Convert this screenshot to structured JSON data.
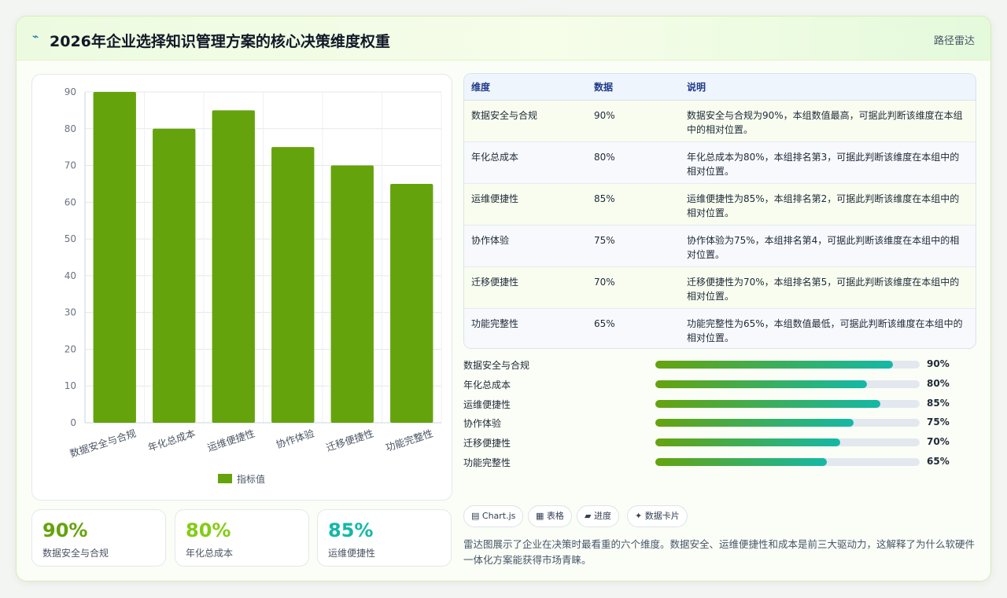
{
  "header": {
    "icon": "path-icon",
    "title": "2026年企业选择知识管理方案的核心决策维度权重",
    "tag": "路径雷达"
  },
  "chart_data": {
    "type": "bar",
    "categories": [
      "数据安全与合规",
      "年化总成本",
      "运维便捷性",
      "协作体验",
      "迁移便捷性",
      "功能完整性"
    ],
    "series": [
      {
        "name": "指标值",
        "values": [
          90,
          80,
          85,
          75,
          70,
          65
        ]
      }
    ],
    "ylim": [
      0,
      90
    ],
    "yticks": [
      0,
      10,
      20,
      30,
      40,
      50,
      60,
      70,
      80,
      90
    ],
    "grid": true,
    "legend": "bottom",
    "bar_color": "#65a30d"
  },
  "stats": [
    {
      "value": "90%",
      "label": "数据安全与合规",
      "color": "#65a30d"
    },
    {
      "value": "80%",
      "label": "年化总成本",
      "color": "#84cc16"
    },
    {
      "value": "85%",
      "label": "运维便捷性",
      "color": "#14b8a6"
    }
  ],
  "table": {
    "headers": [
      "维度",
      "数据",
      "说明"
    ],
    "rows": [
      [
        "数据安全与合规",
        "90%",
        "数据安全与合规为90%，本组数值最高，可据此判断该维度在本组中的相对位置。"
      ],
      [
        "年化总成本",
        "80%",
        "年化总成本为80%，本组排名第3，可据此判断该维度在本组中的相对位置。"
      ],
      [
        "运维便捷性",
        "85%",
        "运维便捷性为85%，本组排名第2，可据此判断该维度在本组中的相对位置。"
      ],
      [
        "协作体验",
        "75%",
        "协作体验为75%，本组排名第4，可据此判断该维度在本组中的相对位置。"
      ],
      [
        "迁移便捷性",
        "70%",
        "迁移便捷性为70%，本组排名第5，可据此判断该维度在本组中的相对位置。"
      ],
      [
        "功能完整性",
        "65%",
        "功能完整性为65%，本组数值最低，可据此判断该维度在本组中的相对位置。"
      ]
    ]
  },
  "progress": [
    {
      "label": "数据安全与合规",
      "value": 90,
      "text": "90%"
    },
    {
      "label": "年化总成本",
      "value": 80,
      "text": "80%"
    },
    {
      "label": "运维便捷性",
      "value": 85,
      "text": "85%"
    },
    {
      "label": "协作体验",
      "value": 75,
      "text": "75%"
    },
    {
      "label": "迁移便捷性",
      "value": 70,
      "text": "70%"
    },
    {
      "label": "功能完整性",
      "value": 65,
      "text": "65%"
    }
  ],
  "chips": [
    {
      "icon": "chart-icon",
      "label": "▤ Chart.js"
    },
    {
      "icon": "table-icon",
      "label": "▦ 表格"
    },
    {
      "icon": "progress-icon",
      "label": "▰ 进度"
    },
    {
      "icon": "sparkle-icon",
      "label": "✦ 数据卡片"
    }
  ],
  "note": "雷达图展示了企业在决策时最看重的六个维度。数据安全、运维便捷性和成本是前三大驱动力，这解释了为什么软硬件一体化方案能获得市场青睐。"
}
